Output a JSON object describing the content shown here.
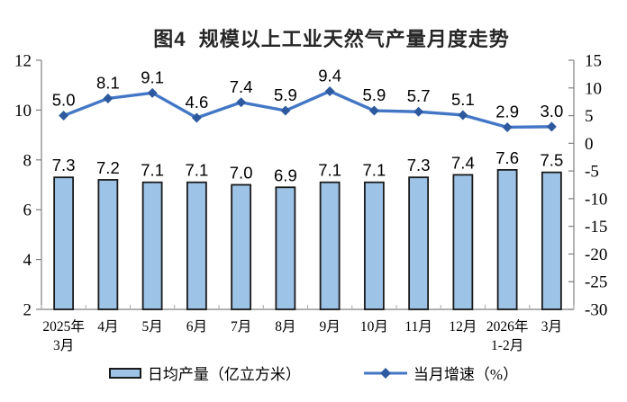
{
  "chart_data": {
    "type": "combo",
    "title": "图4  规模以上工业天然气产量月度走势",
    "categories": [
      [
        "2025年",
        "3月"
      ],
      [
        "4月"
      ],
      [
        "5月"
      ],
      [
        "6月"
      ],
      [
        "7月"
      ],
      [
        "8月"
      ],
      [
        "9月"
      ],
      [
        "10月"
      ],
      [
        "11月"
      ],
      [
        "12月"
      ],
      [
        "2026年",
        "1-2月"
      ],
      [
        "3月"
      ]
    ],
    "series": [
      {
        "name": "日均产量（亿立方米）",
        "type": "bar",
        "axis": "left",
        "values": [
          7.3,
          7.2,
          7.1,
          7.1,
          7.0,
          6.9,
          7.1,
          7.1,
          7.3,
          7.4,
          7.6,
          7.5
        ],
        "labels": [
          "7.3",
          "7.2",
          "7.1",
          "7.1",
          "7.0",
          "6.9",
          "7.1",
          "7.1",
          "7.3",
          "7.4",
          "7.6",
          "7.5"
        ]
      },
      {
        "name": "当月增速（%）",
        "type": "line",
        "axis": "right",
        "values": [
          5.0,
          8.1,
          9.1,
          4.6,
          7.4,
          5.9,
          9.4,
          5.9,
          5.7,
          5.1,
          2.9,
          3.0
        ],
        "labels": [
          "5.0",
          "8.1",
          "9.1",
          "4.6",
          "7.4",
          "5.9",
          "9.4",
          "5.9",
          "5.7",
          "5.1",
          "2.9",
          "3.0"
        ]
      }
    ],
    "left_axis": {
      "min": 2,
      "max": 12,
      "step": 2,
      "ticks": [
        2,
        4,
        6,
        8,
        10,
        12
      ]
    },
    "right_axis": {
      "min": -30,
      "max": 15,
      "step": 5,
      "ticks": [
        -30,
        -25,
        -20,
        -15,
        -10,
        -5,
        0,
        5,
        10,
        15
      ]
    },
    "grid": false,
    "legend_position": "bottom",
    "colors": {
      "bar_fill": "#9DC3E6",
      "bar_border": "#1a1a1a",
      "line": "#4377C6",
      "marker": "#2D5A9E",
      "axis": "#7F7F7F",
      "boundary_tick": "#ABABAB",
      "text": "#000000",
      "title": "#262626"
    }
  }
}
